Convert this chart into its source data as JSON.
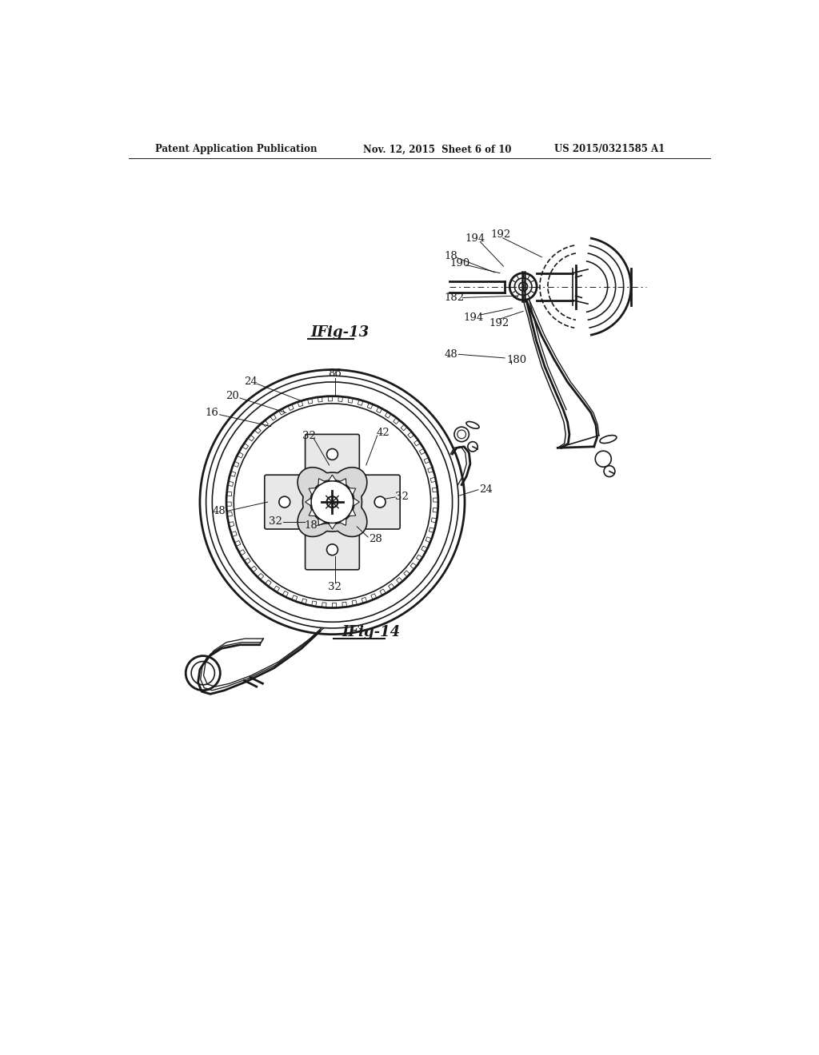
{
  "bg": "#ffffff",
  "lc": "#1a1a1a",
  "lw": 1.2,
  "tlw": 2.0,
  "header_left": "Patent Application Publication",
  "header_center": "Nov. 12, 2015  Sheet 6 of 10",
  "header_right": "US 2015/0321585 A1",
  "fig13_caption": "IFig-13",
  "fig14_caption": "IFig-14"
}
